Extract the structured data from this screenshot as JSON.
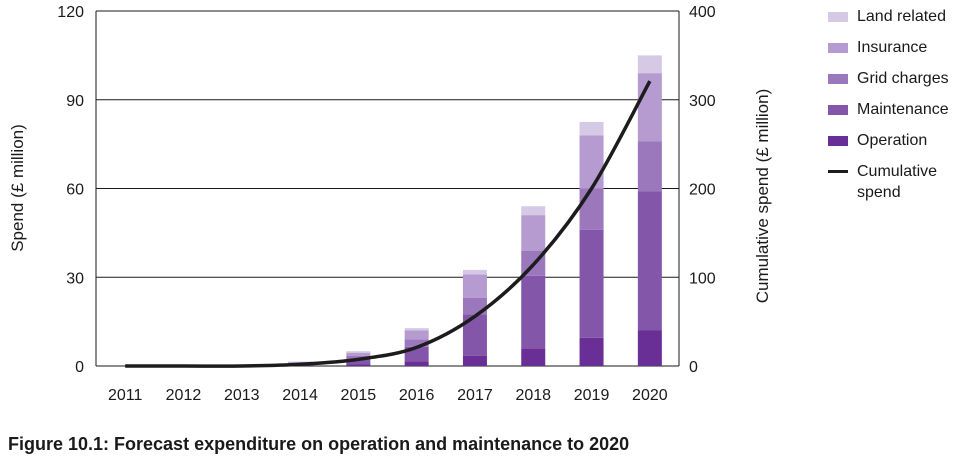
{
  "chart_data": {
    "type": "bar",
    "stacked": true,
    "categories": [
      "2011",
      "2012",
      "2013",
      "2014",
      "2015",
      "2016",
      "2017",
      "2018",
      "2019",
      "2020"
    ],
    "series": [
      {
        "name": "Operation",
        "color": "#6a2f96",
        "values": [
          0,
          0,
          0,
          0.2,
          0.5,
          1.5,
          3.5,
          6,
          9.5,
          12
        ]
      },
      {
        "name": "Maintenance",
        "color": "#8456aa",
        "values": [
          0,
          0,
          0,
          0.5,
          2,
          5,
          14,
          24.5,
          36.5,
          47
        ]
      },
      {
        "name": "Grid charges",
        "color": "#9b77bc",
        "values": [
          0,
          0,
          0,
          0.3,
          1,
          2.5,
          5.5,
          8.5,
          14,
          17
        ]
      },
      {
        "name": "Insurance",
        "color": "#b59bd0",
        "values": [
          0,
          0,
          0,
          0.3,
          1,
          3,
          8,
          12,
          18,
          23
        ]
      },
      {
        "name": "Land related",
        "color": "#d6c9e6",
        "values": [
          0,
          0,
          0,
          0.2,
          0.5,
          0.8,
          1.5,
          3,
          4.5,
          6
        ]
      }
    ],
    "line": {
      "name": "Cumulative spend",
      "color": "#1c1c1c",
      "values": [
        0,
        0,
        0,
        2,
        7.5,
        21,
        56,
        114,
        200,
        321
      ]
    },
    "left_axis": {
      "label": "Spend (£ million)",
      "ylim": [
        0,
        120
      ],
      "ticks": [
        "0",
        "30",
        "60",
        "90",
        "120"
      ]
    },
    "right_axis": {
      "label": "Cumulative spend (£ million)",
      "ylim": [
        0,
        400
      ],
      "ticks": [
        "0",
        "100",
        "200",
        "300",
        "400"
      ]
    },
    "grid": true,
    "legend_position": "right"
  },
  "caption": "Figure 10.1: Forecast expenditure on operation and maintenance to 2020"
}
